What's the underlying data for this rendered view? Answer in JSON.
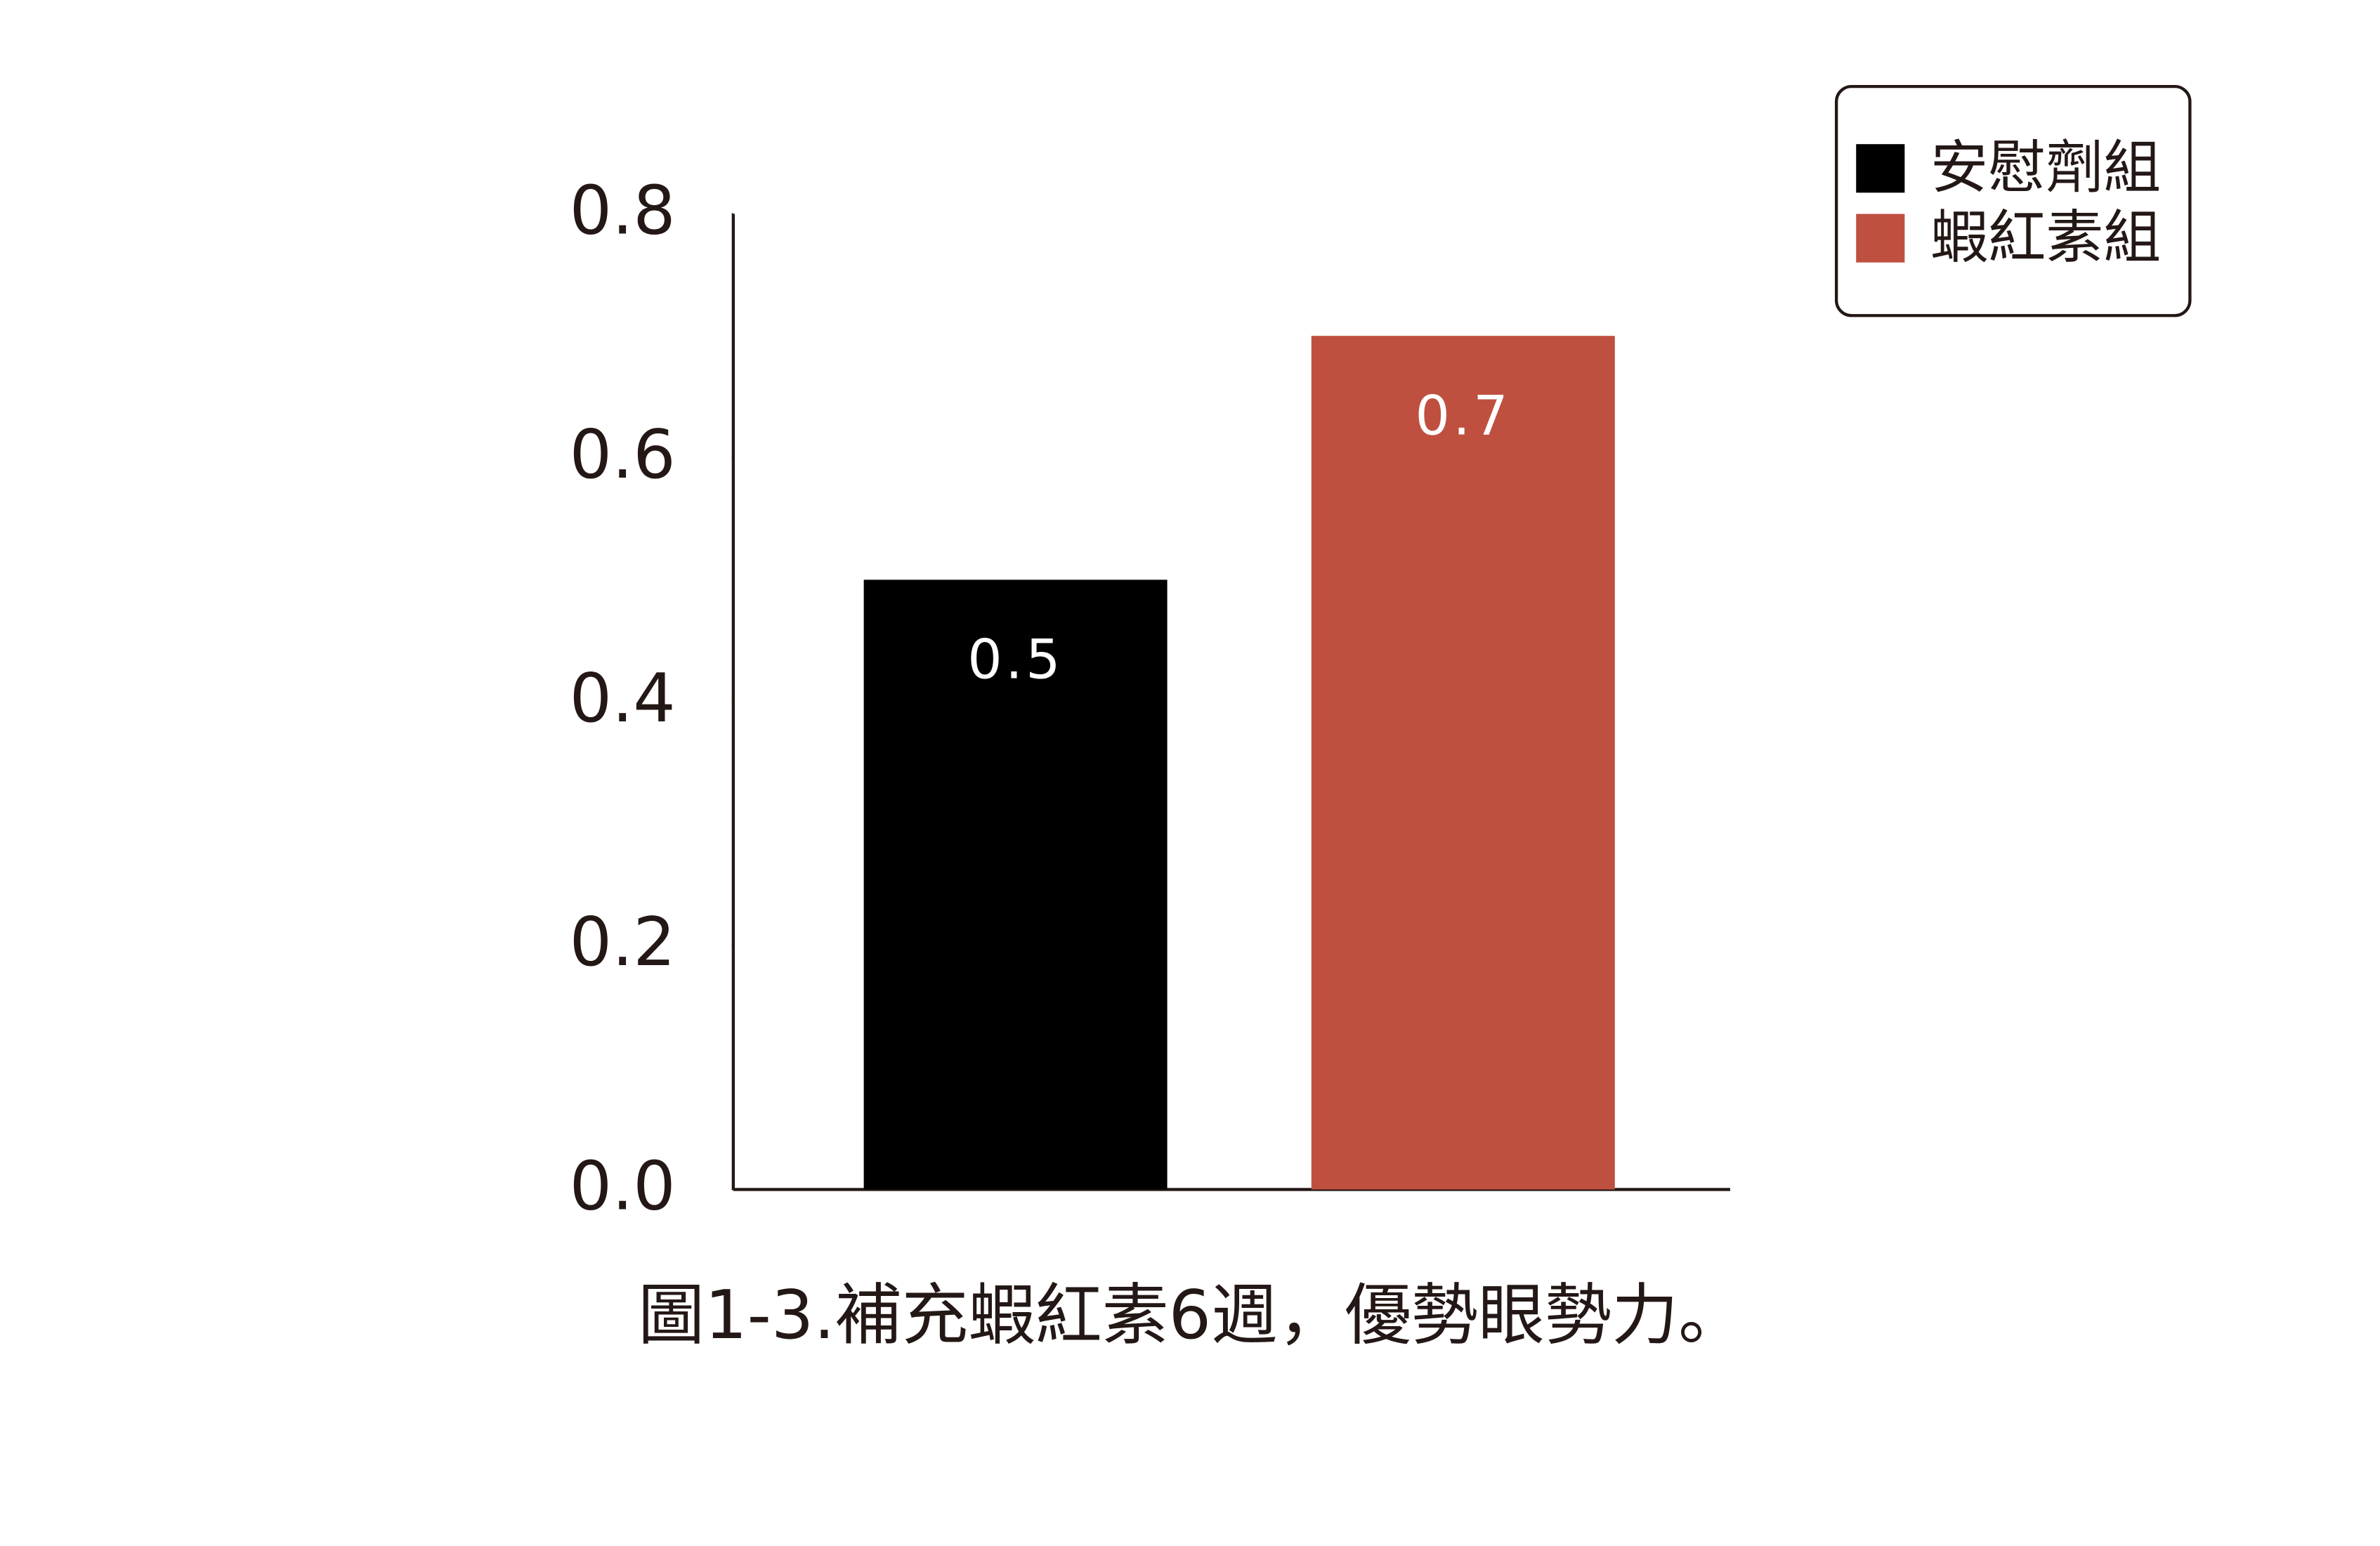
{
  "chart_data": {
    "type": "bar",
    "title": "圖1-3.補充蝦紅素6週，優勢眼勢力。",
    "categories": [
      null
    ],
    "series": [
      {
        "name": "安慰劑組",
        "color": "#000000",
        "values": [
          0.5
        ]
      },
      {
        "name": "蝦紅素組",
        "color": "#bf5040",
        "values": [
          0.7
        ]
      }
    ],
    "ylim": [
      0,
      0.8
    ],
    "yticks": [
      {
        "value": 0,
        "label": "0.0"
      },
      0.2,
      0.4,
      0.6,
      0.8
    ],
    "grid": false,
    "legend": "upper right"
  }
}
